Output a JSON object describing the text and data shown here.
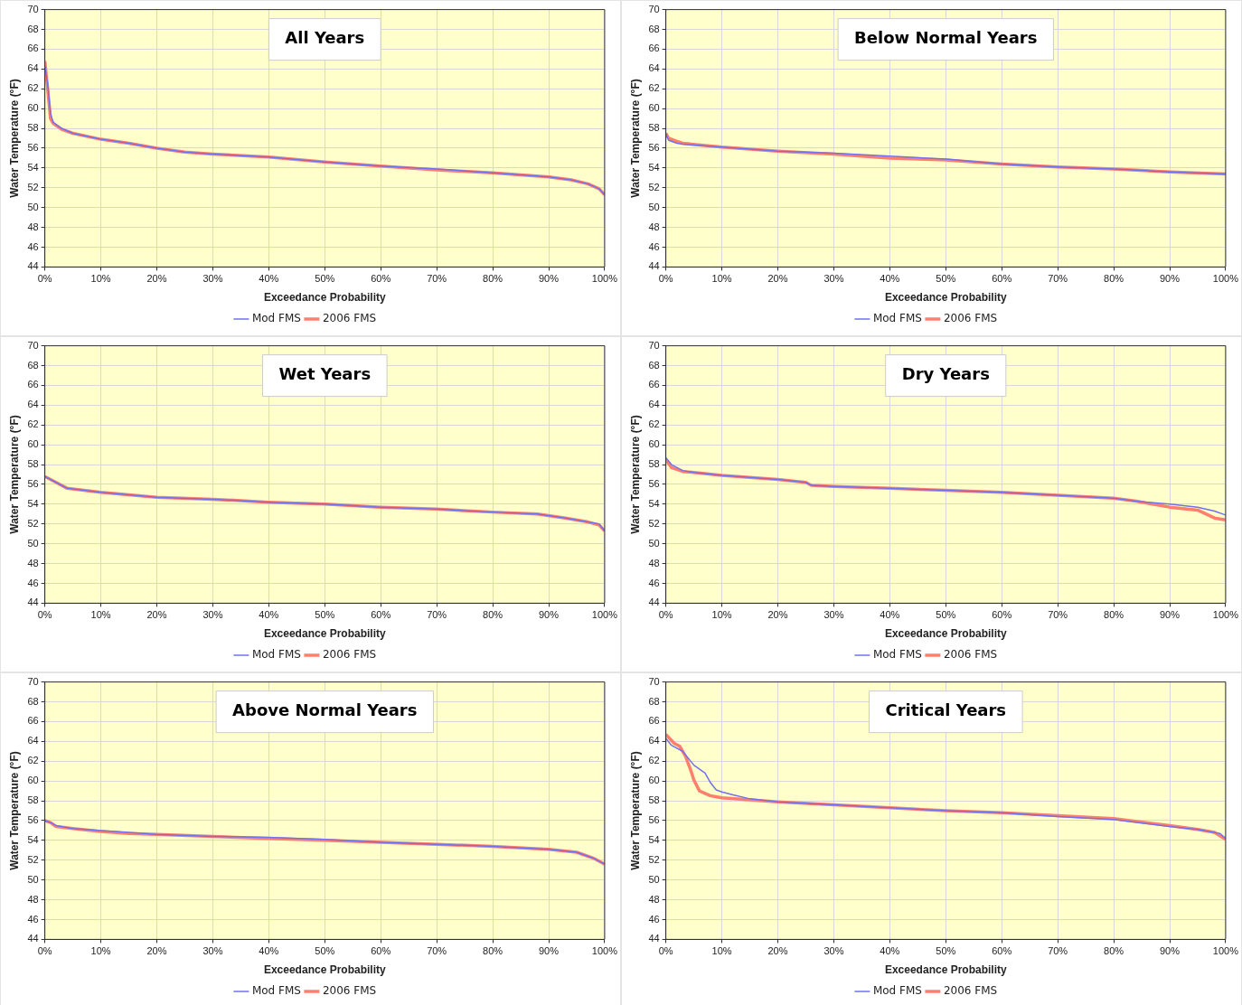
{
  "chart_data": [
    {
      "type": "line",
      "title": "All Years",
      "xlabel": "Exceedance Probability",
      "ylabel": "Water Temperature (°F)",
      "xlim": [
        0,
        100
      ],
      "ylim": [
        44,
        70
      ],
      "xticks": [
        {
          "value": 0,
          "label": "0%"
        },
        {
          "value": 10,
          "label": "10%"
        },
        {
          "value": 20,
          "label": "20%"
        },
        {
          "value": 30,
          "label": "30%"
        },
        {
          "value": 40,
          "label": "40%"
        },
        {
          "value": 50,
          "label": "50%"
        },
        {
          "value": 60,
          "label": "60%"
        },
        {
          "value": 70,
          "label": "70%"
        },
        {
          "value": 80,
          "label": "80%"
        },
        {
          "value": 90,
          "label": "90%"
        },
        {
          "value": 100,
          "label": "100%"
        }
      ],
      "yticks": [
        44,
        46,
        48,
        50,
        52,
        54,
        56,
        58,
        60,
        62,
        64,
        66,
        68,
        70
      ],
      "grid": true,
      "legend": "bottom",
      "marker": "none",
      "line_style": "solid",
      "series": [
        {
          "name": "2006 FMS",
          "color": "#ff7f6e",
          "x": [
            0,
            0.5,
            1,
            1.5,
            3,
            5,
            10,
            15,
            20,
            25,
            30,
            40,
            50,
            60,
            70,
            80,
            90,
            94,
            97,
            99,
            100
          ],
          "values": [
            64.8,
            62,
            59,
            58.5,
            57.9,
            57.5,
            56.9,
            56.5,
            56,
            55.6,
            55.4,
            55.1,
            54.6,
            54.2,
            53.8,
            53.5,
            53.1,
            52.8,
            52.4,
            51.9,
            51.3
          ]
        },
        {
          "name": "Mod FMS",
          "color": "#7070f0",
          "x": [
            0,
            0.5,
            1,
            1.5,
            3,
            5,
            10,
            15,
            20,
            25,
            30,
            40,
            50,
            60,
            70,
            80,
            90,
            94,
            97,
            99,
            100
          ],
          "values": [
            64.3,
            62.5,
            59.5,
            58.6,
            58,
            57.5,
            56.9,
            56.5,
            56,
            55.6,
            55.4,
            55.1,
            54.6,
            54.2,
            53.9,
            53.5,
            53.1,
            52.8,
            52.4,
            51.9,
            51.3
          ]
        }
      ]
    },
    {
      "type": "line",
      "title": "Below Normal Years",
      "xlabel": "Exceedance Probability",
      "ylabel": "Water Temperature (°F)",
      "xlim": [
        0,
        100
      ],
      "ylim": [
        44,
        70
      ],
      "xticks": [
        {
          "value": 0,
          "label": "0%"
        },
        {
          "value": 10,
          "label": "10%"
        },
        {
          "value": 20,
          "label": "20%"
        },
        {
          "value": 30,
          "label": "30%"
        },
        {
          "value": 40,
          "label": "40%"
        },
        {
          "value": 50,
          "label": "50%"
        },
        {
          "value": 60,
          "label": "60%"
        },
        {
          "value": 70,
          "label": "70%"
        },
        {
          "value": 80,
          "label": "80%"
        },
        {
          "value": 90,
          "label": "90%"
        },
        {
          "value": 100,
          "label": "100%"
        }
      ],
      "yticks": [
        44,
        46,
        48,
        50,
        52,
        54,
        56,
        58,
        60,
        62,
        64,
        66,
        68,
        70
      ],
      "grid": true,
      "legend": "bottom",
      "marker": "none",
      "line_style": "solid",
      "series": [
        {
          "name": "2006 FMS",
          "color": "#ff7f6e",
          "x": [
            0,
            0.5,
            2,
            3,
            10,
            20,
            30,
            40,
            50,
            60,
            70,
            80,
            90,
            100
          ],
          "values": [
            57.5,
            57,
            56.7,
            56.5,
            56.1,
            55.7,
            55.4,
            55,
            54.8,
            54.4,
            54.1,
            53.9,
            53.6,
            53.4
          ]
        },
        {
          "name": "Mod FMS",
          "color": "#7070f0",
          "x": [
            0,
            0.5,
            2,
            3,
            10,
            20,
            30,
            40,
            50,
            60,
            70,
            80,
            90,
            100
          ],
          "values": [
            57.5,
            56.8,
            56.5,
            56.4,
            56.1,
            55.7,
            55.5,
            55.2,
            54.9,
            54.4,
            54.1,
            53.9,
            53.6,
            53.4
          ]
        }
      ]
    },
    {
      "type": "line",
      "title": "Wet Years",
      "xlabel": "Exceedance Probability",
      "ylabel": "Water Temperature (°F)",
      "xlim": [
        0,
        100
      ],
      "ylim": [
        44,
        70
      ],
      "xticks": [
        {
          "value": 0,
          "label": "0%"
        },
        {
          "value": 10,
          "label": "10%"
        },
        {
          "value": 20,
          "label": "20%"
        },
        {
          "value": 30,
          "label": "30%"
        },
        {
          "value": 40,
          "label": "40%"
        },
        {
          "value": 50,
          "label": "50%"
        },
        {
          "value": 60,
          "label": "60%"
        },
        {
          "value": 70,
          "label": "70%"
        },
        {
          "value": 80,
          "label": "80%"
        },
        {
          "value": 90,
          "label": "90%"
        },
        {
          "value": 100,
          "label": "100%"
        }
      ],
      "yticks": [
        44,
        46,
        48,
        50,
        52,
        54,
        56,
        58,
        60,
        62,
        64,
        66,
        68,
        70
      ],
      "grid": true,
      "legend": "bottom",
      "marker": "none",
      "line_style": "solid",
      "series": [
        {
          "name": "2006 FMS",
          "color": "#ff7f6e",
          "x": [
            0,
            2,
            4,
            10,
            20,
            30,
            40,
            50,
            60,
            70,
            80,
            88,
            93,
            97,
            99,
            100
          ],
          "values": [
            56.8,
            56.2,
            55.6,
            55.2,
            54.7,
            54.5,
            54.2,
            54,
            53.7,
            53.5,
            53.2,
            53,
            52.6,
            52.2,
            51.9,
            51.3
          ]
        },
        {
          "name": "Mod FMS",
          "color": "#7070f0",
          "x": [
            0,
            2,
            4,
            10,
            20,
            30,
            40,
            50,
            60,
            70,
            80,
            88,
            93,
            97,
            99,
            100
          ],
          "values": [
            56.8,
            56.2,
            55.6,
            55.2,
            54.7,
            54.5,
            54.2,
            54,
            53.7,
            53.5,
            53.2,
            53,
            52.6,
            52.2,
            52,
            51.3
          ]
        }
      ]
    },
    {
      "type": "line",
      "title": "Dry Years",
      "xlabel": "Exceedance Probability",
      "ylabel": "Water Temperature (°F)",
      "xlim": [
        0,
        100
      ],
      "ylim": [
        44,
        70
      ],
      "xticks": [
        {
          "value": 0,
          "label": "0%"
        },
        {
          "value": 10,
          "label": "10%"
        },
        {
          "value": 20,
          "label": "20%"
        },
        {
          "value": 30,
          "label": "30%"
        },
        {
          "value": 40,
          "label": "40%"
        },
        {
          "value": 50,
          "label": "50%"
        },
        {
          "value": 60,
          "label": "60%"
        },
        {
          "value": 70,
          "label": "70%"
        },
        {
          "value": 80,
          "label": "80%"
        },
        {
          "value": 90,
          "label": "90%"
        },
        {
          "value": 100,
          "label": "100%"
        }
      ],
      "yticks": [
        44,
        46,
        48,
        50,
        52,
        54,
        56,
        58,
        60,
        62,
        64,
        66,
        68,
        70
      ],
      "grid": true,
      "legend": "bottom",
      "marker": "none",
      "line_style": "solid",
      "series": [
        {
          "name": "2006 FMS",
          "color": "#ff7f6e",
          "x": [
            0,
            1,
            3,
            5,
            10,
            20,
            25,
            26,
            30,
            40,
            50,
            60,
            70,
            80,
            84,
            90,
            95,
            98,
            100
          ],
          "values": [
            58.5,
            57.7,
            57.3,
            57.2,
            56.9,
            56.5,
            56.2,
            55.9,
            55.8,
            55.6,
            55.4,
            55.2,
            54.9,
            54.6,
            54.3,
            53.7,
            53.4,
            52.6,
            52.4
          ]
        },
        {
          "name": "Mod FMS",
          "color": "#7070f0",
          "x": [
            0,
            1,
            3,
            5,
            10,
            20,
            25,
            26,
            30,
            40,
            50,
            60,
            70,
            80,
            84,
            90,
            95,
            98,
            100
          ],
          "values": [
            58.7,
            58,
            57.4,
            57.2,
            56.9,
            56.5,
            56.2,
            55.9,
            55.8,
            55.6,
            55.4,
            55.2,
            54.9,
            54.6,
            54.3,
            54,
            53.7,
            53.3,
            52.9
          ]
        }
      ]
    },
    {
      "type": "line",
      "title": "Above Normal Years",
      "xlabel": "Exceedance Probability",
      "ylabel": "Water Temperature (°F)",
      "xlim": [
        0,
        100
      ],
      "ylim": [
        44,
        70
      ],
      "xticks": [
        {
          "value": 0,
          "label": "0%"
        },
        {
          "value": 10,
          "label": "10%"
        },
        {
          "value": 20,
          "label": "20%"
        },
        {
          "value": 30,
          "label": "30%"
        },
        {
          "value": 40,
          "label": "40%"
        },
        {
          "value": 50,
          "label": "50%"
        },
        {
          "value": 60,
          "label": "60%"
        },
        {
          "value": 70,
          "label": "70%"
        },
        {
          "value": 80,
          "label": "80%"
        },
        {
          "value": 90,
          "label": "90%"
        },
        {
          "value": 100,
          "label": "100%"
        }
      ],
      "yticks": [
        44,
        46,
        48,
        50,
        52,
        54,
        56,
        58,
        60,
        62,
        64,
        66,
        68,
        70
      ],
      "grid": true,
      "legend": "bottom",
      "marker": "none",
      "line_style": "solid",
      "series": [
        {
          "name": "2006 FMS",
          "color": "#ff7f6e",
          "x": [
            0,
            1,
            2,
            5,
            10,
            15,
            20,
            30,
            40,
            50,
            60,
            70,
            80,
            90,
            95,
            98,
            100
          ],
          "values": [
            56,
            55.8,
            55.4,
            55.2,
            54.9,
            54.7,
            54.6,
            54.4,
            54.2,
            54,
            53.8,
            53.6,
            53.4,
            53.1,
            52.8,
            52.2,
            51.6
          ]
        },
        {
          "name": "Mod FMS",
          "color": "#7070f0",
          "x": [
            0,
            1,
            2,
            5,
            10,
            15,
            20,
            30,
            40,
            50,
            60,
            70,
            80,
            90,
            95,
            98,
            100
          ],
          "values": [
            56,
            55.8,
            55.5,
            55.2,
            55,
            54.8,
            54.6,
            54.4,
            54.3,
            54.1,
            53.8,
            53.6,
            53.4,
            53.1,
            52.8,
            52.2,
            51.6
          ]
        }
      ]
    },
    {
      "type": "line",
      "title": "Critical Years",
      "xlabel": "Exceedance Probability",
      "ylabel": "Water Temperature (°F)",
      "xlim": [
        0,
        100
      ],
      "ylim": [
        44,
        70
      ],
      "xticks": [
        {
          "value": 0,
          "label": "0%"
        },
        {
          "value": 10,
          "label": "10%"
        },
        {
          "value": 20,
          "label": "20%"
        },
        {
          "value": 30,
          "label": "30%"
        },
        {
          "value": 40,
          "label": "40%"
        },
        {
          "value": 50,
          "label": "50%"
        },
        {
          "value": 60,
          "label": "60%"
        },
        {
          "value": 70,
          "label": "70%"
        },
        {
          "value": 80,
          "label": "80%"
        },
        {
          "value": 90,
          "label": "90%"
        },
        {
          "value": 100,
          "label": "100%"
        }
      ],
      "yticks": [
        44,
        46,
        48,
        50,
        52,
        54,
        56,
        58,
        60,
        62,
        64,
        66,
        68,
        70
      ],
      "grid": true,
      "legend": "bottom",
      "marker": "none",
      "line_style": "solid",
      "series": [
        {
          "name": "2006 FMS",
          "color": "#ff7f6e",
          "x": [
            0,
            1.5,
            2.5,
            3.5,
            4.5,
            5,
            6,
            8,
            10,
            15,
            20,
            30,
            40,
            50,
            60,
            70,
            80,
            90,
            95,
            98,
            100
          ],
          "values": [
            64.7,
            63.8,
            63.5,
            62.5,
            61,
            60.1,
            59,
            58.5,
            58.3,
            58.1,
            57.9,
            57.6,
            57.3,
            57,
            56.8,
            56.5,
            56.2,
            55.5,
            55.1,
            54.8,
            54.1
          ]
        },
        {
          "name": "Mod FMS",
          "color": "#7070f0",
          "x": [
            0,
            1,
            3,
            4,
            5,
            7,
            8,
            9,
            10,
            12,
            15,
            20,
            30,
            40,
            50,
            60,
            70,
            80,
            90,
            95,
            99,
            100
          ],
          "values": [
            64.3,
            63.6,
            63,
            62.3,
            61.6,
            60.8,
            59.8,
            59.1,
            58.9,
            58.6,
            58.2,
            57.9,
            57.6,
            57.3,
            57,
            56.8,
            56.4,
            56.1,
            55.4,
            55.1,
            54.7,
            54.2
          ]
        }
      ]
    }
  ]
}
